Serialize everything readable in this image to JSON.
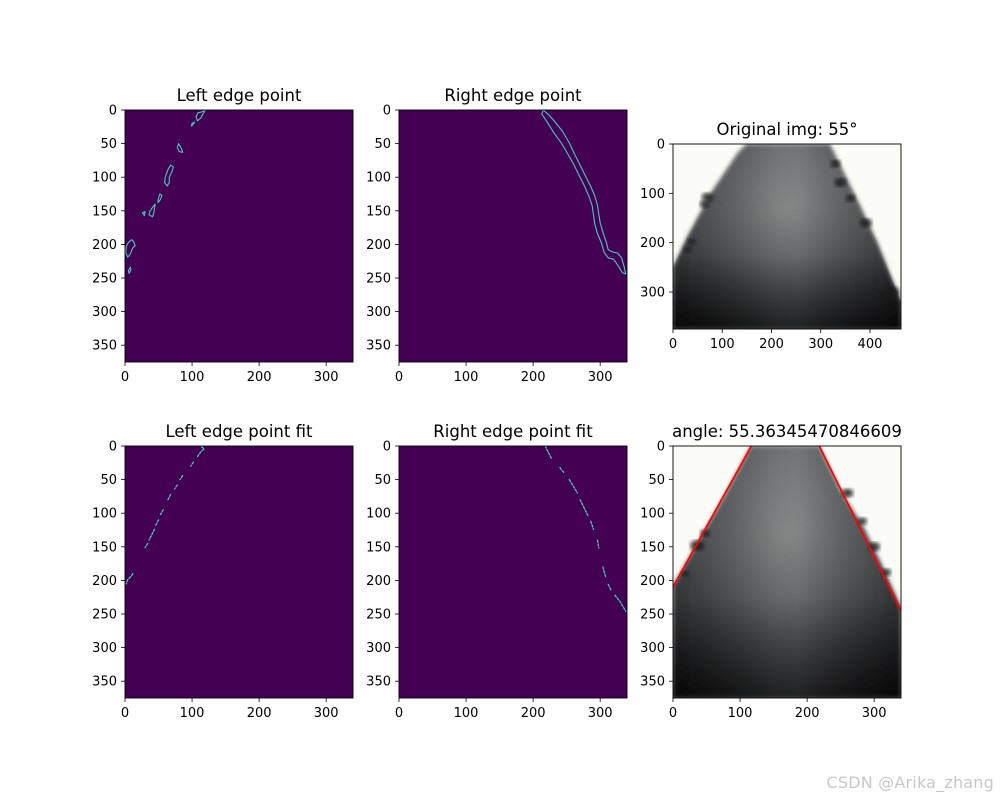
{
  "watermark": "CSDN @Arika_zhang",
  "colors": {
    "background": "#440154",
    "edge": "#4fc4c4",
    "fit_line": "#ff0000",
    "photo_bg": "#fbfbf7"
  },
  "chart_data": [
    {
      "type": "heatmap",
      "title": "Left edge point",
      "xlim": [
        0,
        340
      ],
      "ylim": [
        375,
        0
      ],
      "xticks": [
        0,
        100,
        200,
        300
      ],
      "yticks": [
        0,
        50,
        100,
        150,
        200,
        250,
        300,
        350
      ],
      "grid": false,
      "edges": [
        [
          [
            120,
            0
          ],
          [
            116,
            6
          ],
          [
            113,
            12
          ],
          [
            108,
            16
          ],
          [
            106,
            10
          ],
          [
            109,
            4
          ],
          [
            114,
            3
          ],
          [
            118,
            1
          ]
        ],
        [
          [
            104,
            18
          ],
          [
            101,
            22
          ],
          [
            99,
            24
          ],
          [
            100,
            20
          ]
        ],
        [
          [
            80,
            50
          ],
          [
            78,
            56
          ],
          [
            81,
            62
          ],
          [
            86,
            63
          ],
          [
            84,
            57
          ]
        ],
        [
          [
            68,
            82
          ],
          [
            64,
            89
          ],
          [
            60,
            100
          ],
          [
            59,
            108
          ],
          [
            63,
            113
          ],
          [
            66,
            108
          ],
          [
            66,
            100
          ],
          [
            70,
            92
          ],
          [
            72,
            85
          ]
        ],
        [
          [
            52,
            125
          ],
          [
            50,
            131
          ],
          [
            49,
            138
          ],
          [
            53,
            133
          ],
          [
            55,
            127
          ]
        ],
        [
          [
            45,
            140
          ],
          [
            41,
            145
          ],
          [
            37,
            151
          ],
          [
            36,
            156
          ],
          [
            41,
            159
          ],
          [
            43,
            153
          ]
        ],
        [
          [
            30,
            151
          ],
          [
            26,
            153
          ],
          [
            29,
            157
          ]
        ],
        [
          [
            10,
            193
          ],
          [
            5,
            197
          ],
          [
            2,
            203
          ],
          [
            1,
            212
          ],
          [
            4,
            219
          ],
          [
            8,
            214
          ],
          [
            11,
            206
          ],
          [
            15,
            202
          ],
          [
            13,
            196
          ]
        ],
        [
          [
            8,
            234
          ],
          [
            5,
            239
          ],
          [
            6,
            243
          ],
          [
            9,
            238
          ]
        ]
      ]
    },
    {
      "type": "heatmap",
      "title": "Right edge point",
      "xlim": [
        0,
        340
      ],
      "ylim": [
        375,
        0
      ],
      "xticks": [
        0,
        100,
        200,
        300
      ],
      "yticks": [
        0,
        50,
        100,
        150,
        200,
        250,
        300,
        350
      ],
      "grid": false,
      "edges": [
        [
          [
            215,
            0
          ],
          [
            222,
            6
          ],
          [
            232,
            17
          ],
          [
            244,
            32
          ],
          [
            254,
            49
          ],
          [
            262,
            66
          ],
          [
            270,
            82
          ],
          [
            278,
            98
          ],
          [
            286,
            114
          ],
          [
            292,
            128
          ],
          [
            296,
            142
          ],
          [
            298,
            155
          ],
          [
            300,
            168
          ],
          [
            304,
            182
          ],
          [
            309,
            196
          ],
          [
            312,
            208
          ],
          [
            318,
            211
          ],
          [
            326,
            213
          ],
          [
            332,
            220
          ],
          [
            336,
            234
          ],
          [
            338,
            244
          ],
          [
            333,
            242
          ],
          [
            327,
            232
          ],
          [
            320,
            222
          ],
          [
            312,
            220
          ],
          [
            306,
            212
          ],
          [
            302,
            198
          ],
          [
            296,
            184
          ],
          [
            292,
            170
          ],
          [
            290,
            156
          ],
          [
            288,
            142
          ],
          [
            283,
            128
          ],
          [
            276,
            112
          ],
          [
            268,
            96
          ],
          [
            260,
            80
          ],
          [
            251,
            64
          ],
          [
            242,
            49
          ],
          [
            231,
            34
          ],
          [
            221,
            18
          ],
          [
            213,
            6
          ]
        ]
      ]
    },
    {
      "type": "image",
      "title": "Original img: 55°",
      "xlim": [
        0,
        463
      ],
      "ylim": [
        375,
        0
      ],
      "xticks": [
        0,
        100,
        200,
        300,
        400
      ],
      "yticks": [
        0,
        100,
        200,
        300
      ],
      "grid": false
    },
    {
      "type": "heatmap",
      "title": "Left edge point fit",
      "xlim": [
        0,
        340
      ],
      "ylim": [
        375,
        0
      ],
      "xticks": [
        0,
        100,
        200,
        300
      ],
      "yticks": [
        0,
        50,
        100,
        150,
        200,
        250,
        300,
        350
      ],
      "grid": false,
      "edges": [
        [
          [
            114,
            1
          ],
          [
            118,
            4
          ],
          [
            112,
            10
          ],
          [
            108,
            16
          ]
        ],
        [
          [
            102,
            24
          ],
          [
            98,
            30
          ]
        ],
        [
          [
            86,
            44
          ],
          [
            82,
            50
          ]
        ],
        [
          [
            78,
            58
          ],
          [
            74,
            64
          ]
        ],
        [
          [
            68,
            72
          ],
          [
            64,
            80
          ]
        ],
        [
          [
            57,
            95
          ],
          [
            53,
            102
          ]
        ],
        [
          [
            50,
            110
          ],
          [
            46,
            118
          ]
        ],
        [
          [
            44,
            124
          ],
          [
            40,
            132
          ],
          [
            36,
            140
          ]
        ],
        [
          [
            34,
            145
          ],
          [
            30,
            151
          ]
        ],
        [
          [
            12,
            190
          ],
          [
            8,
            195
          ],
          [
            4,
            199
          ],
          [
            2,
            205
          ]
        ]
      ]
    },
    {
      "type": "heatmap",
      "title": "Right edge point fit",
      "xlim": [
        0,
        340
      ],
      "ylim": [
        375,
        0
      ],
      "xticks": [
        0,
        100,
        200,
        300
      ],
      "yticks": [
        0,
        50,
        100,
        150,
        200,
        250,
        300,
        350
      ],
      "grid": false,
      "edges": [
        [
          [
            218,
            0
          ],
          [
            224,
            12
          ],
          [
            228,
            20
          ]
        ],
        [
          [
            240,
            32
          ],
          [
            246,
            40
          ]
        ],
        [
          [
            254,
            50
          ],
          [
            260,
            60
          ],
          [
            266,
            70
          ]
        ],
        [
          [
            270,
            80
          ],
          [
            276,
            92
          ],
          [
            282,
            104
          ]
        ],
        [
          [
            286,
            112
          ],
          [
            290,
            124
          ]
        ],
        [
          [
            296,
            140
          ],
          [
            298,
            152
          ]
        ],
        [
          [
            304,
            180
          ],
          [
            308,
            194
          ]
        ],
        [
          [
            312,
            206
          ],
          [
            316,
            214
          ]
        ],
        [
          [
            322,
            222
          ],
          [
            330,
            232
          ],
          [
            338,
            246
          ]
        ]
      ]
    },
    {
      "type": "image",
      "title": "angle: 55.36345470846609",
      "xlim": [
        0,
        340
      ],
      "ylim": [
        375,
        0
      ],
      "xticks": [
        0,
        100,
        200,
        300
      ],
      "yticks": [
        0,
        50,
        100,
        150,
        200,
        250,
        300,
        350
      ],
      "grid": false,
      "fit_lines": [
        {
          "from": [
            0,
            210
          ],
          "to": [
            117,
            0
          ]
        },
        {
          "from": [
            218,
            0
          ],
          "to": [
            340,
            245
          ]
        }
      ]
    }
  ]
}
